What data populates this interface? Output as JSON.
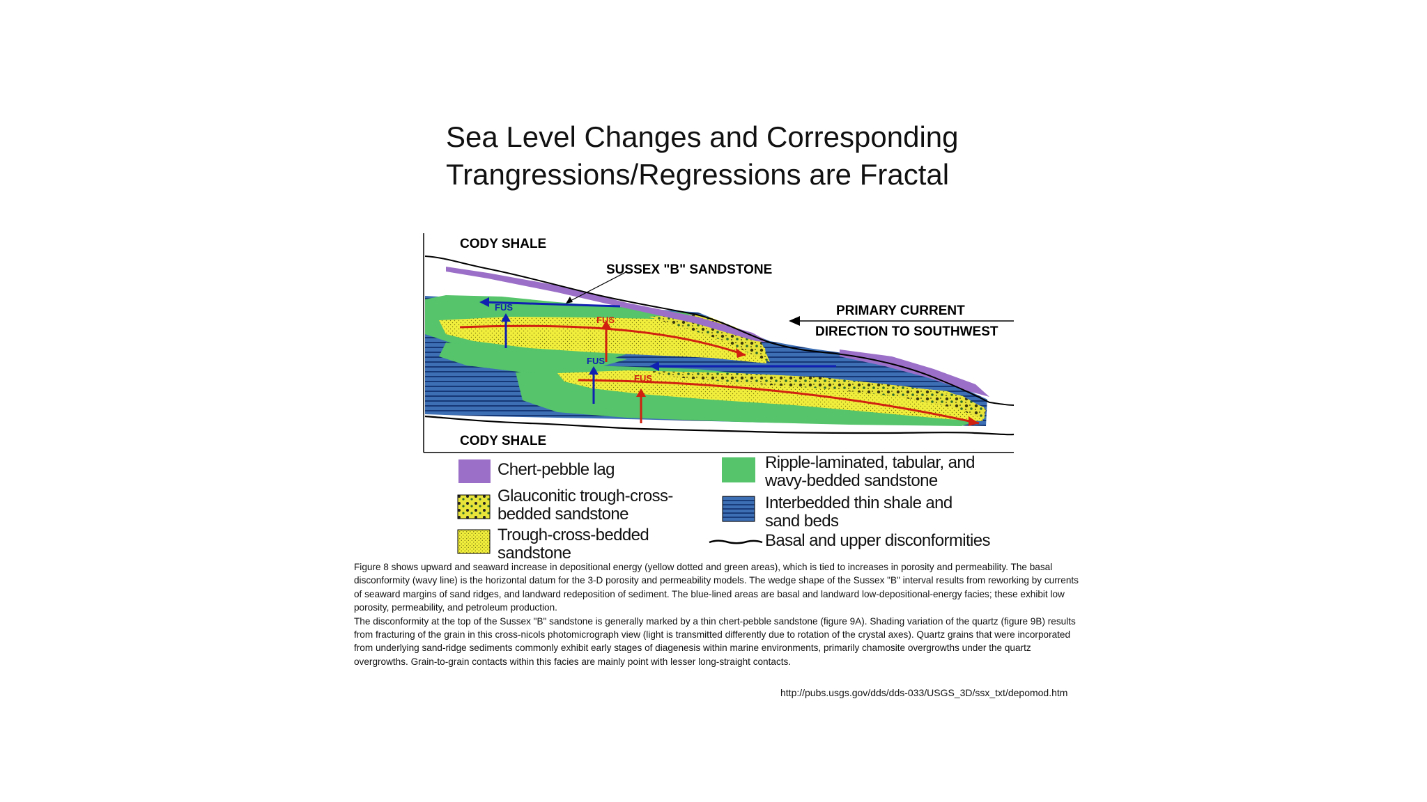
{
  "title": {
    "line1": "Sea Level Changes and Corresponding",
    "line2": "Trangressions/Regressions are Fractal"
  },
  "diagram": {
    "top_unit": "CODY SHALE",
    "bottom_unit": "CODY SHALE",
    "sandstone_label": "SUSSEX \"B\" SANDSTONE",
    "current_line1": "PRIMARY CURRENT",
    "current_line2": "DIRECTION TO SOUTHWEST",
    "arrow_labels": {
      "upper_blue": "FUS",
      "upper_red": "FUS",
      "lower_blue": "FUS",
      "lower_red": "FUS"
    }
  },
  "legend": {
    "chert": "Chert-pebble lag",
    "glauconitic_line1": "Glauconitic trough-cross-",
    "glauconitic_line2": "bedded sandstone",
    "trough_line1": "Trough-cross-bedded",
    "trough_line2": "sandstone",
    "ripple_line1": "Ripple-laminated, tabular, and",
    "ripple_line2": "wavy-bedded sandstone",
    "interbedded_line1": "Interbedded thin shale and",
    "interbedded_line2": "sand beds",
    "disconformity": "Basal and upper disconformities"
  },
  "caption": {
    "para1": "Figure 8 shows upward and seaward increase in depositional energy (yellow dotted and green areas), which is tied to increases in porosity and permeability. The basal disconformity (wavy line) is the horizontal datum for the 3-D porosity and permeability models. The wedge shape of the Sussex \"B\" interval results from reworking by currents of seaward margins of sand ridges, and landward redeposition of sediment. The blue-lined areas are basal and landward low-depositional-energy facies; these exhibit low porosity, permeability, and petroleum production.",
    "para2": "The disconformity at the top of the Sussex \"B\" sandstone is generally marked by a thin chert-pebble sandstone (figure 9A). Shading variation of the quartz (figure 9B) results from fracturing of the grain in this cross-nicols photomicrograph view (light is transmitted differently due to rotation of the crystal axes). Quartz grains that were incorporated from underlying sand-ridge sediments commonly exhibit early stages of diagenesis within marine environments, primarily chamosite overgrowths under the quartz overgrowths. Grain-to-grain contacts within this facies are mainly point with lesser long-straight contacts."
  },
  "source_url": "http://pubs.usgs.gov/dds/dds-033/USGS_3D/ssx_txt/depomod.htm",
  "colors": {
    "chert": "#9b6fc7",
    "green": "#55c46a",
    "yellow": "#f2ee3c",
    "blue": "#3d6fb5",
    "blue_line": "#0d2a66",
    "arrow_red": "#d02010",
    "arrow_blue": "#1020b0"
  },
  "icons": {
    "current_arrow": "arrow-left-icon",
    "disconformity_line": "wavy-line-icon"
  }
}
